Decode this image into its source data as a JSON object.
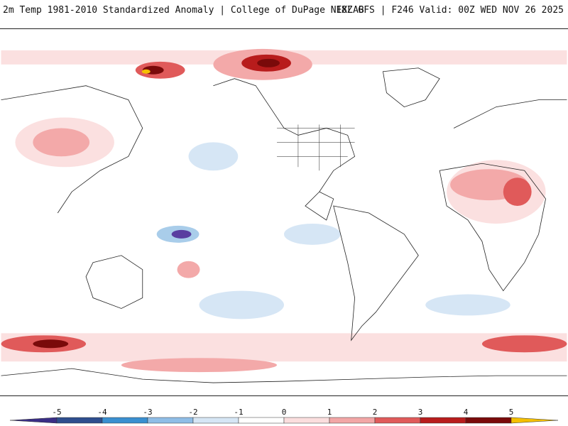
{
  "header": {
    "title": "2m Temp 1981-2010 Standardized Anomaly | College of DuPage NEXLAB",
    "run_info": "18Z GFS | F246 Valid: 00Z WED NOV 26 2025"
  },
  "legend": {
    "ticks": [
      "-5",
      "-4",
      "-3",
      "-2",
      "-1",
      "0",
      "1",
      "2",
      "3",
      "4",
      "5"
    ],
    "colors": [
      "#3a2e86",
      "#2e4e8e",
      "#3a8fd0",
      "#8fbde6",
      "#d6e6f5",
      "#ffffff",
      "#fbdede",
      "#f2a6a6",
      "#e05a5a",
      "#b81c1c",
      "#7a0a0a",
      "#f5c000"
    ]
  },
  "colors": {
    "coast": "#222222",
    "neg1": "#d6e6f5",
    "neg2": "#a9cdea",
    "neg3": "#5fa3dc",
    "neg5": "#5a3ea0",
    "pos1": "#fbe0e0",
    "pos2": "#f3a9a9",
    "pos3": "#e05a5a",
    "pos4": "#b81c1c",
    "pos5": "#7a0a0a",
    "extreme": "#f5c000"
  }
}
